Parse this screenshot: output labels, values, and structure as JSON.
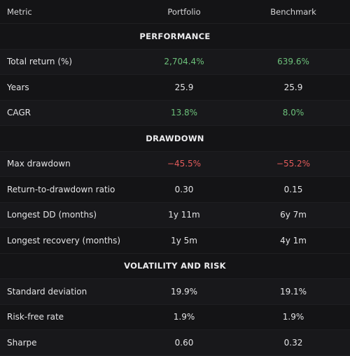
{
  "header": {
    "metric": "Metric",
    "portfolio": "Portfolio",
    "benchmark": "Benchmark"
  },
  "sections": [
    {
      "title": "PERFORMANCE",
      "rows": [
        {
          "label": "Total return (%)",
          "portfolio": "2,704.4%",
          "benchmark": "639.6%",
          "tone": "pos"
        },
        {
          "label": "Years",
          "portfolio": "25.9",
          "benchmark": "25.9",
          "tone": ""
        },
        {
          "label": "CAGR",
          "portfolio": "13.8%",
          "benchmark": "8.0%",
          "tone": "pos"
        }
      ]
    },
    {
      "title": "DRAWDOWN",
      "rows": [
        {
          "label": "Max drawdown",
          "portfolio": "−45.5%",
          "benchmark": "−55.2%",
          "tone": "neg"
        },
        {
          "label": "Return-to-drawdown ratio",
          "portfolio": "0.30",
          "benchmark": "0.15",
          "tone": ""
        },
        {
          "label": "Longest DD (months)",
          "portfolio": "1y 11m",
          "benchmark": "6y 7m",
          "tone": ""
        },
        {
          "label": "Longest recovery (months)",
          "portfolio": "1y 5m",
          "benchmark": "4y 1m",
          "tone": ""
        }
      ]
    },
    {
      "title": "VOLATILITY AND RISK",
      "rows": [
        {
          "label": "Standard deviation",
          "portfolio": "19.9%",
          "benchmark": "19.1%",
          "tone": ""
        },
        {
          "label": "Risk-free rate",
          "portfolio": "1.9%",
          "benchmark": "1.9%",
          "tone": ""
        },
        {
          "label": "Sharpe",
          "portfolio": "0.60",
          "benchmark": "0.32",
          "tone": ""
        }
      ]
    }
  ],
  "colors": {
    "background": "#141416",
    "positive": "#6cc07a",
    "negative": "#e35b5b"
  }
}
